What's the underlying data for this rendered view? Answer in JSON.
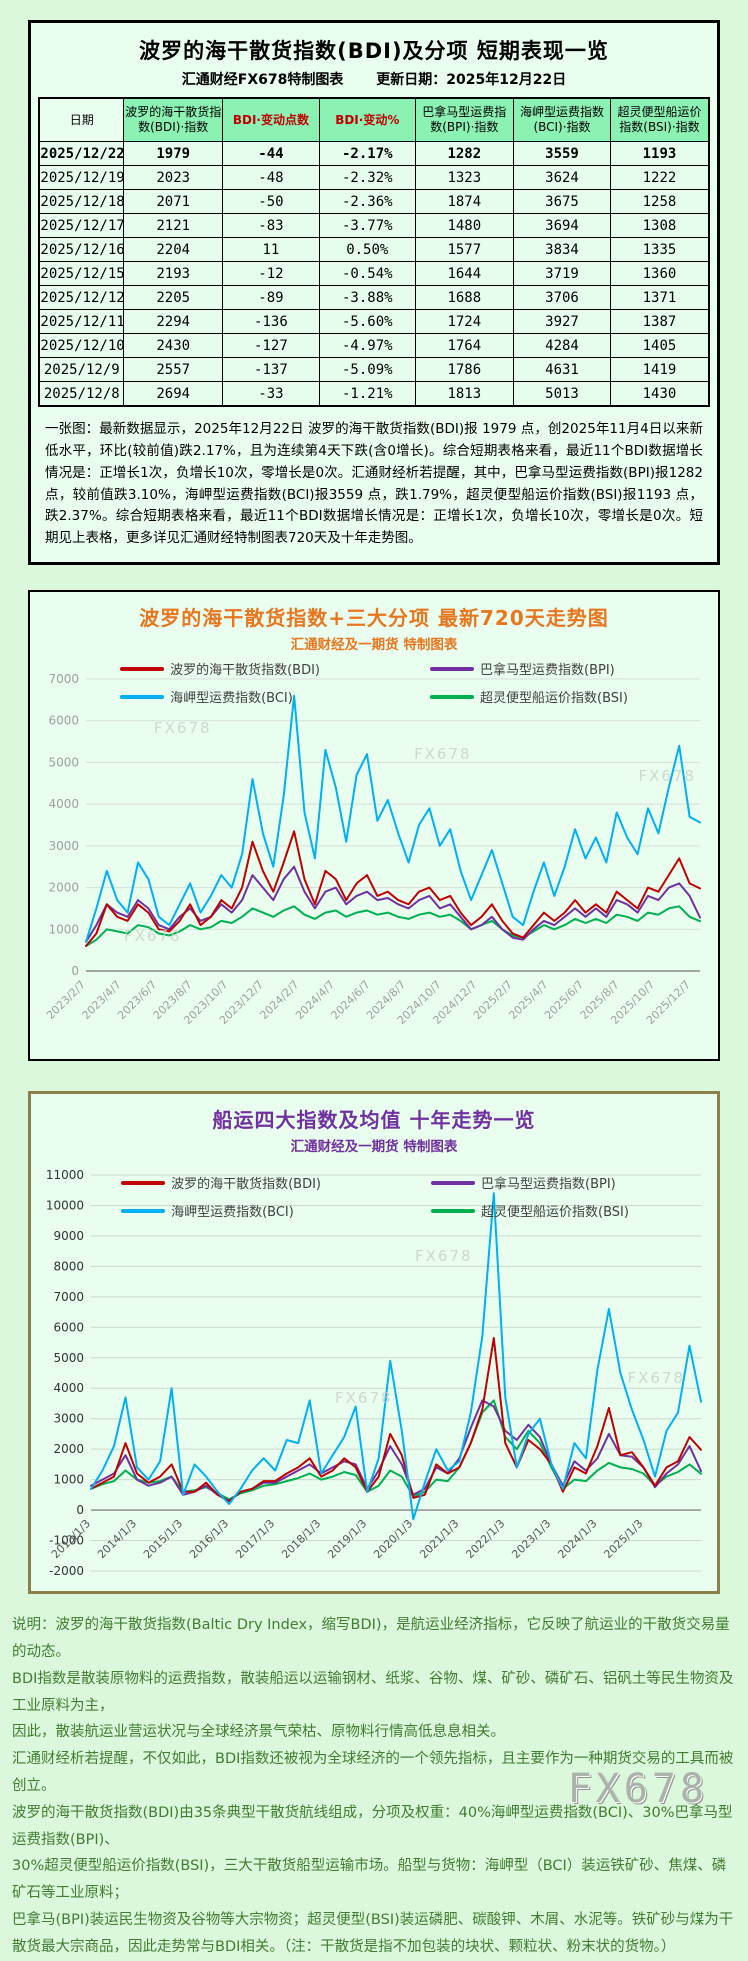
{
  "page": {
    "watermark": "FX678"
  },
  "colors": {
    "page_bg": "#dcf8dc",
    "panel_bg": "#eafef0",
    "header_bg": "#8cf2b4",
    "accent_red": "#c00000",
    "accent_orange": "#e8761f",
    "accent_purple": "#7030a0",
    "footer_green": "#3f7d2f",
    "chart2_border": "#8b8148",
    "bdi_line": "#c00000",
    "bpi_line": "#7030a0",
    "bci_line": "#00b0f0",
    "bsi_line": "#00b050"
  },
  "table_panel": {
    "title": "波罗的海干散货指数(BDI)及分项  短期表现一览",
    "subtitle_left": "汇通财经FX678特制图表",
    "subtitle_right": "更新日期：2025年12月22日",
    "columns": [
      "日期",
      "波罗的海干散货指数(BDI)·指数",
      "BDI·变动点数",
      "BDI·变动%",
      "巴拿马型运费指数(BPI)·指数",
      "海岬型运费指数(BCI)·指数",
      "超灵便型船运价指数(BSI)·指数"
    ],
    "rows": [
      [
        "2025/12/22",
        "1979",
        "-44",
        "-2.17%",
        "1282",
        "3559",
        "1193"
      ],
      [
        "2025/12/19",
        "2023",
        "-48",
        "-2.32%",
        "1323",
        "3624",
        "1222"
      ],
      [
        "2025/12/18",
        "2071",
        "-50",
        "-2.36%",
        "1874",
        "3675",
        "1258"
      ],
      [
        "2025/12/17",
        "2121",
        "-83",
        "-3.77%",
        "1480",
        "3694",
        "1308"
      ],
      [
        "2025/12/16",
        "2204",
        "11",
        "0.50%",
        "1577",
        "3834",
        "1335"
      ],
      [
        "2025/12/15",
        "2193",
        "-12",
        "-0.54%",
        "1644",
        "3719",
        "1360"
      ],
      [
        "2025/12/12",
        "2205",
        "-89",
        "-3.88%",
        "1688",
        "3706",
        "1371"
      ],
      [
        "2025/12/11",
        "2294",
        "-136",
        "-5.60%",
        "1724",
        "3927",
        "1387"
      ],
      [
        "2025/12/10",
        "2430",
        "-127",
        "-4.97%",
        "1764",
        "4284",
        "1405"
      ],
      [
        "2025/12/9",
        "2557",
        "-137",
        "-5.09%",
        "1786",
        "4631",
        "1419"
      ],
      [
        "2025/12/8",
        "2694",
        "-33",
        "-1.21%",
        "1813",
        "5013",
        "1430"
      ]
    ],
    "note": "一张图：最新数据显示，2025年12月22日 波罗的海干散货指数(BDI)报 1979 点，创2025年11月4日以来新低水平，环比(较前值)跌2.17%，且为连续第4天下跌(含0增长)。综合短期表格来看，最近11个BDI数据增长情况是：正增长1次，负增长10次，零增长是0次。汇通财经析若提醒，其中，巴拿马型运费指数(BPI)报1282 点，较前值跌3.10%，海岬型运费指数(BCI)报3559 点，跌1.79%，超灵便型船运价指数(BSI)报1193 点，跌2.37%。综合短期表格来看，最近11个BDI数据增长情况是：正增长1次，负增长10次，零增长是0次。短期见上表格，更多详见汇通财经特制图表720天及十年走势图。"
  },
  "chart_data": [
    {
      "type": "line",
      "title": "波罗的海干散货指数+三大分项  最新720天走势图",
      "subtitle": "汇通财经及一期货  特制图表",
      "ylim": [
        0,
        7000
      ],
      "ytick_step": 1000,
      "grid": true,
      "legend_position": "top-center",
      "x_labels": [
        "2023/2/7",
        "2023/4/7",
        "2023/6/7",
        "2023/8/7",
        "2023/10/7",
        "2023/12/7",
        "2024/2/7",
        "2024/4/7",
        "2024/6/7",
        "2024/8/7",
        "2024/10/7",
        "2024/12/7",
        "2025/2/7",
        "2025/4/7",
        "2025/6/7",
        "2025/8/7",
        "2025/10/7",
        "2025/12/7"
      ],
      "series": [
        {
          "name": "波罗的海干散货指数(BDI)",
          "color": "#c00000",
          "values": [
            600,
            900,
            1600,
            1300,
            1200,
            1600,
            1400,
            1000,
            950,
            1200,
            1600,
            1100,
            1300,
            1700,
            1500,
            2000,
            3100,
            2400,
            1900,
            2600,
            3350,
            2200,
            1600,
            2400,
            2200,
            1700,
            2100,
            2300,
            1800,
            1900,
            1700,
            1600,
            1900,
            2000,
            1700,
            1800,
            1400,
            1100,
            1300,
            1600,
            1200,
            900,
            800,
            1100,
            1400,
            1200,
            1400,
            1700,
            1400,
            1600,
            1400,
            1900,
            1700,
            1500,
            2000,
            1900,
            2300,
            2700,
            2100,
            1979
          ]
        },
        {
          "name": "巴拿马型运费指数(BPI)",
          "color": "#7030a0",
          "values": [
            700,
            1100,
            1600,
            1400,
            1300,
            1700,
            1500,
            1100,
            1000,
            1300,
            1500,
            1200,
            1300,
            1600,
            1400,
            1700,
            2300,
            2000,
            1700,
            2200,
            2500,
            1900,
            1500,
            1900,
            2000,
            1600,
            1800,
            1900,
            1700,
            1750,
            1600,
            1500,
            1700,
            1800,
            1500,
            1600,
            1300,
            1000,
            1100,
            1300,
            1000,
            800,
            750,
            1000,
            1200,
            1100,
            1300,
            1500,
            1300,
            1500,
            1300,
            1700,
            1600,
            1400,
            1800,
            1700,
            2000,
            2100,
            1800,
            1282
          ]
        },
        {
          "name": "海岬型运费指数(BCI)",
          "color": "#00b0f0",
          "values": [
            700,
            1500,
            2400,
            1700,
            1400,
            2600,
            2200,
            1300,
            1100,
            1600,
            2100,
            1400,
            1800,
            2300,
            2000,
            2800,
            4600,
            3300,
            2500,
            4200,
            6600,
            3800,
            2700,
            5300,
            4400,
            3100,
            4700,
            5200,
            3600,
            4100,
            3300,
            2600,
            3500,
            3900,
            3000,
            3400,
            2400,
            1700,
            2300,
            2900,
            2100,
            1300,
            1100,
            1900,
            2600,
            1800,
            2500,
            3400,
            2700,
            3200,
            2600,
            3800,
            3200,
            2800,
            3900,
            3300,
            4400,
            5400,
            3700,
            3559
          ]
        },
        {
          "name": "超灵便型船运价指数(BSI)",
          "color": "#00b050",
          "values": [
            600,
            750,
            1000,
            950,
            900,
            1100,
            1050,
            900,
            850,
            950,
            1100,
            1000,
            1050,
            1200,
            1150,
            1300,
            1500,
            1400,
            1300,
            1450,
            1550,
            1350,
            1250,
            1400,
            1450,
            1300,
            1400,
            1450,
            1350,
            1400,
            1300,
            1250,
            1350,
            1400,
            1300,
            1350,
            1200,
            1000,
            1100,
            1200,
            1000,
            850,
            800,
            950,
            1100,
            1000,
            1100,
            1250,
            1150,
            1250,
            1150,
            1350,
            1300,
            1200,
            1400,
            1350,
            1500,
            1550,
            1300,
            1193
          ]
        }
      ]
    },
    {
      "type": "line",
      "title": "船运四大指数及均值 十年走势一览",
      "subtitle": "汇通财经及一期货 特制图表",
      "ylim": [
        -2000,
        11000
      ],
      "ytick_step": 1000,
      "grid": true,
      "legend_position": "top-center",
      "x_labels": [
        "2013/1/3",
        "2014/1/3",
        "2015/1/3",
        "2016/1/3",
        "2017/1/3",
        "2018/1/3",
        "2019/1/3",
        "2020/1/3",
        "2021/1/3",
        "2022/1/3",
        "2023/1/3",
        "2024/1/3",
        "2025/1/3"
      ],
      "series": [
        {
          "name": "波罗的海干散货指数(BDI)",
          "color": "#c00000",
          "values": [
            700,
            900,
            1100,
            2200,
            1200,
            900,
            1100,
            1500,
            600,
            600,
            900,
            500,
            290,
            600,
            700,
            950,
            950,
            1200,
            1400,
            1700,
            1100,
            1300,
            1700,
            1400,
            600,
            1100,
            2500,
            1800,
            400,
            500,
            1500,
            1200,
            1400,
            2200,
            3300,
            5650,
            2200,
            1400,
            2300,
            2000,
            1500,
            600,
            1400,
            1200,
            2100,
            3350,
            1800,
            1900,
            1400,
            800,
            1400,
            1600,
            2400,
            1979
          ]
        },
        {
          "name": "巴拿马型运费指数(BPI)",
          "color": "#7030a0",
          "values": [
            800,
            1000,
            1200,
            1800,
            1000,
            800,
            900,
            1100,
            500,
            600,
            800,
            500,
            300,
            600,
            700,
            900,
            900,
            1100,
            1300,
            1500,
            1200,
            1400,
            1600,
            1500,
            700,
            1300,
            2100,
            1500,
            500,
            700,
            1400,
            1200,
            1700,
            2700,
            3600,
            3400,
            2600,
            2300,
            2800,
            2400,
            1500,
            800,
            1600,
            1300,
            1700,
            2500,
            1800,
            1750,
            1400,
            750,
            1200,
            1500,
            2100,
            1282
          ]
        },
        {
          "name": "海岬型运费指数(BCI)",
          "color": "#00b0f0",
          "values": [
            700,
            1300,
            2100,
            3700,
            1400,
            1000,
            1600,
            4000,
            500,
            1500,
            1100,
            600,
            200,
            700,
            1300,
            1700,
            1300,
            2300,
            2200,
            3600,
            1200,
            1800,
            2400,
            3400,
            600,
            1700,
            4900,
            2600,
            -300,
            900,
            2000,
            1300,
            1600,
            3200,
            5700,
            10400,
            3700,
            1400,
            2500,
            3000,
            1500,
            700,
            2200,
            1700,
            4600,
            6600,
            4500,
            3300,
            2300,
            1100,
            2600,
            3200,
            5400,
            3559
          ]
        },
        {
          "name": "超灵便型船运价指数(BSI)",
          "color": "#00b050",
          "values": [
            700,
            850,
            950,
            1300,
            1000,
            900,
            950,
            1100,
            600,
            650,
            750,
            550,
            350,
            550,
            650,
            800,
            850,
            950,
            1050,
            1200,
            1000,
            1100,
            1250,
            1150,
            600,
            800,
            1300,
            1100,
            450,
            600,
            1000,
            950,
            1400,
            2200,
            3200,
            3600,
            2400,
            2000,
            2600,
            2200,
            1400,
            700,
            1000,
            950,
            1300,
            1550,
            1400,
            1350,
            1200,
            800,
            1100,
            1250,
            1500,
            1193
          ]
        }
      ]
    }
  ],
  "footer": {
    "lines": [
      "说明：波罗的海干散货指数(Baltic Dry Index，缩写BDI)，是航运业经济指标，它反映了航运业的干散货交易量的动态。",
      "BDI指数是散装原物料的运费指数，散装船运以运输钢材、纸浆、谷物、煤、矿砂、磷矿石、铝矾土等民生物资及工业原料为主，",
      "因此，散装航运业营运状况与全球经济景气荣枯、原物料行情高低息息相关。",
      "汇通财经析若提醒，不仅如此，BDI指数还被视为全球经济的一个领先指标，且主要作为一种期货交易的工具而被创立。",
      "波罗的海干散货指数(BDI)由35条典型干散货航线组成，分项及权重：40%海岬型运费指数(BCI)、30%巴拿马型运费指数(BPI)、",
      "30%超灵便型船运价指数(BSI)，三大干散货船型运输市场。船型与货物：海岬型（BCI）装运铁矿砂、焦煤、磷矿石等工业原料；",
      "巴拿马(BPI)装运民生物资及谷物等大宗物资；超灵便型(BSI)装运磷肥、碳酸钾、木屑、水泥等。铁矿砂与煤为干散货最大宗商品，因此走势常与BDI相关。（注：干散货是指不加包装的块状、颗粒状、粉末状的货物。）"
    ]
  }
}
